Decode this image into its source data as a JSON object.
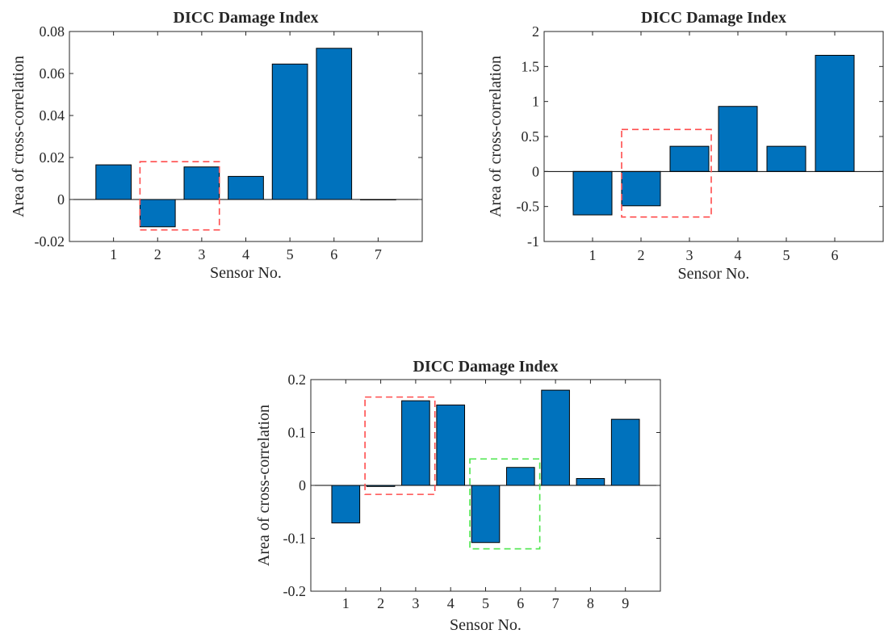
{
  "chart_data": [
    {
      "type": "bar",
      "title": "DICC Damage Index",
      "xlabel": "Sensor No.",
      "ylabel": "Area of cross-correlation",
      "categories": [
        "1",
        "2",
        "3",
        "4",
        "5",
        "6",
        "7"
      ],
      "values": [
        0.0165,
        -0.013,
        0.0155,
        0.011,
        0.0645,
        0.072,
        0.0
      ],
      "ylim": [
        -0.02,
        0.08
      ],
      "yticks": [
        "-0.02",
        "0",
        "0.02",
        "0.04",
        "0.06",
        "0.08"
      ],
      "ytick_values": [
        -0.02,
        0,
        0.02,
        0.04,
        0.06,
        0.08
      ],
      "xlim": [
        0,
        8
      ],
      "bar_color": "#0072BD",
      "highlight_boxes": [
        {
          "color": "#FF4D4D",
          "x_range": [
            1.6,
            3.4
          ],
          "y_range": [
            -0.0145,
            0.018
          ]
        }
      ]
    },
    {
      "type": "bar",
      "title": "DICC Damage Index",
      "xlabel": "Sensor No.",
      "ylabel": "Area of cross-correlation",
      "categories": [
        "1",
        "2",
        "3",
        "4",
        "5",
        "6"
      ],
      "values": [
        -0.62,
        -0.49,
        0.36,
        0.93,
        0.36,
        1.66
      ],
      "ylim": [
        -1,
        2
      ],
      "yticks": [
        "-1",
        "-0.5",
        "0",
        "0.5",
        "1",
        "1.5",
        "2"
      ],
      "ytick_values": [
        -1,
        -0.5,
        0,
        0.5,
        1,
        1.5,
        2
      ],
      "xlim": [
        0,
        7
      ],
      "bar_color": "#0072BD",
      "highlight_boxes": [
        {
          "color": "#FF4D4D",
          "x_range": [
            1.6,
            3.45
          ],
          "y_range": [
            -0.65,
            0.6
          ]
        }
      ]
    },
    {
      "type": "bar",
      "title": "DICC Damage Index",
      "xlabel": "Sensor No.",
      "ylabel": "Area of cross-correlation",
      "categories": [
        "1",
        "2",
        "3",
        "4",
        "5",
        "6",
        "7",
        "8",
        "9"
      ],
      "values": [
        -0.071,
        -0.002,
        0.16,
        0.152,
        -0.108,
        0.034,
        0.18,
        0.013,
        0.125
      ],
      "ylim": [
        -0.2,
        0.2
      ],
      "yticks": [
        "-0.2",
        "-0.1",
        "0",
        "0.1",
        "0.2"
      ],
      "ytick_values": [
        -0.2,
        -0.1,
        0,
        0.1,
        0.2
      ],
      "xlim": [
        0,
        10
      ],
      "bar_color": "#0072BD",
      "highlight_boxes": [
        {
          "color": "#FF4D4D",
          "x_range": [
            1.55,
            3.55
          ],
          "y_range": [
            -0.017,
            0.167
          ]
        },
        {
          "color": "#4DE64D",
          "x_range": [
            4.55,
            6.55
          ],
          "y_range": [
            -0.12,
            0.05
          ]
        }
      ]
    }
  ]
}
